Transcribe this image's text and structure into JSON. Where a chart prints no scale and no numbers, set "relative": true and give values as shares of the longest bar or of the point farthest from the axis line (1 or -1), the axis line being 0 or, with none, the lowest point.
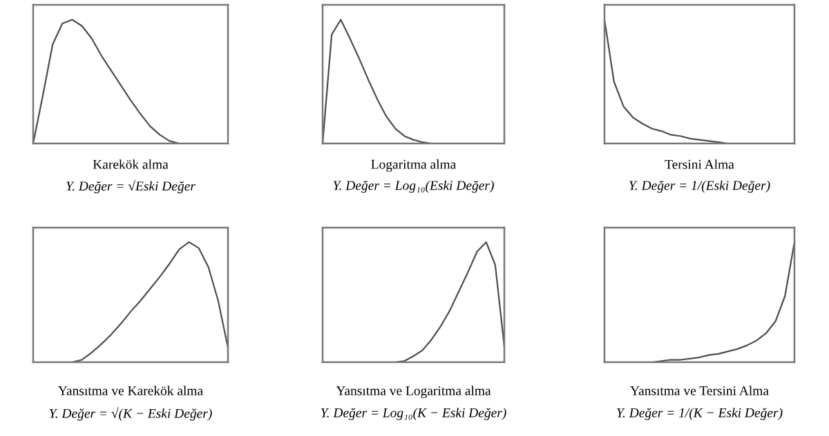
{
  "chart_data": [
    {
      "type": "line",
      "relative": true,
      "title": "Karekök alma",
      "annotations": [
        "Y. Değer = √Eski Değer"
      ],
      "categories": [
        null,
        null,
        null,
        null,
        null,
        null,
        null,
        null,
        null,
        null,
        null,
        null,
        null,
        null,
        null,
        null,
        null,
        null,
        null,
        null,
        null
      ],
      "series": [
        {
          "color": "#4d4d4d",
          "values": [
            0,
            0.39,
            0.8,
            0.97,
            1.0,
            0.95,
            0.85,
            0.71,
            0.59,
            0.47,
            0.35,
            0.24,
            0.14,
            0.07,
            0.02,
            0,
            null,
            null,
            null,
            null,
            null
          ]
        }
      ]
    },
    {
      "type": "line",
      "relative": true,
      "title": "Logaritma alma",
      "annotations": [
        "Y. Değer = Log₁₀(Eski Değer)"
      ],
      "categories": [
        null,
        null,
        null,
        null,
        null,
        null,
        null,
        null,
        null,
        null,
        null,
        null,
        null,
        null,
        null,
        null,
        null,
        null,
        null,
        null,
        null
      ],
      "series": [
        {
          "color": "#4d4d4d",
          "values": [
            0,
            0.88,
            1.0,
            0.85,
            0.69,
            0.52,
            0.36,
            0.22,
            0.12,
            0.06,
            0.03,
            0.01,
            0,
            0,
            0,
            0,
            null,
            null,
            null,
            null,
            null
          ]
        }
      ]
    },
    {
      "type": "line",
      "relative": true,
      "title": "Tersini Alma",
      "annotations": [
        "Y. Değer = 1/(Eski Değer)"
      ],
      "categories": [
        null,
        null,
        null,
        null,
        null,
        null,
        null,
        null,
        null,
        null,
        null,
        null,
        null,
        null,
        null,
        null,
        null,
        null,
        null,
        null,
        null
      ],
      "series": [
        {
          "color": "#4d4d4d",
          "values": [
            1.0,
            0.5,
            0.3,
            0.21,
            0.16,
            0.12,
            0.1,
            0.07,
            0.06,
            0.04,
            0.03,
            0.02,
            0.01,
            0,
            0,
            0,
            null,
            null,
            null,
            null,
            null
          ]
        }
      ]
    },
    {
      "type": "line",
      "relative": true,
      "title": "Yansıtma ve Karekök alma",
      "annotations": [
        "Y. Değer = √(K − Eski Değer)"
      ],
      "categories": [
        null,
        null,
        null,
        null,
        null,
        null,
        null,
        null,
        null,
        null,
        null,
        null,
        null,
        null,
        null,
        null,
        null,
        null,
        null,
        null,
        null
      ],
      "series": [
        {
          "color": "#4d4d4d",
          "values": [
            null,
            null,
            null,
            null,
            0,
            0.02,
            0.08,
            0.15,
            0.23,
            0.32,
            0.42,
            0.51,
            0.61,
            0.71,
            0.82,
            0.94,
            1.0,
            0.95,
            0.79,
            0.51,
            0.12
          ]
        }
      ]
    },
    {
      "type": "line",
      "relative": true,
      "title": "Yansıtma ve Logaritma alma",
      "annotations": [
        "Y. Değer = Log₁₀(K − Eski Değer)"
      ],
      "categories": [
        null,
        null,
        null,
        null,
        null,
        null,
        null,
        null,
        null,
        null,
        null,
        null,
        null,
        null,
        null,
        null,
        null,
        null,
        null,
        null,
        null
      ],
      "series": [
        {
          "color": "#4d4d4d",
          "values": [
            null,
            null,
            null,
            null,
            null,
            null,
            null,
            null,
            0,
            0.01,
            0.05,
            0.1,
            0.19,
            0.3,
            0.43,
            0.59,
            0.75,
            0.92,
            1.0,
            0.81,
            0.13
          ]
        }
      ]
    },
    {
      "type": "line",
      "relative": true,
      "title": "Yansıtma ve Tersini Alma",
      "annotations": [
        "Y. Değer = 1/(K − Eski Değer)"
      ],
      "categories": [
        null,
        null,
        null,
        null,
        null,
        null,
        null,
        null,
        null,
        null,
        null,
        null,
        null,
        null,
        null,
        null,
        null,
        null,
        null,
        null,
        null
      ],
      "series": [
        {
          "color": "#4d4d4d",
          "values": [
            null,
            null,
            null,
            null,
            null,
            0,
            0.01,
            0.02,
            0.02,
            0.03,
            0.04,
            0.06,
            0.07,
            0.09,
            0.11,
            0.14,
            0.18,
            0.24,
            0.34,
            0.55,
            1.0
          ]
        }
      ]
    }
  ]
}
